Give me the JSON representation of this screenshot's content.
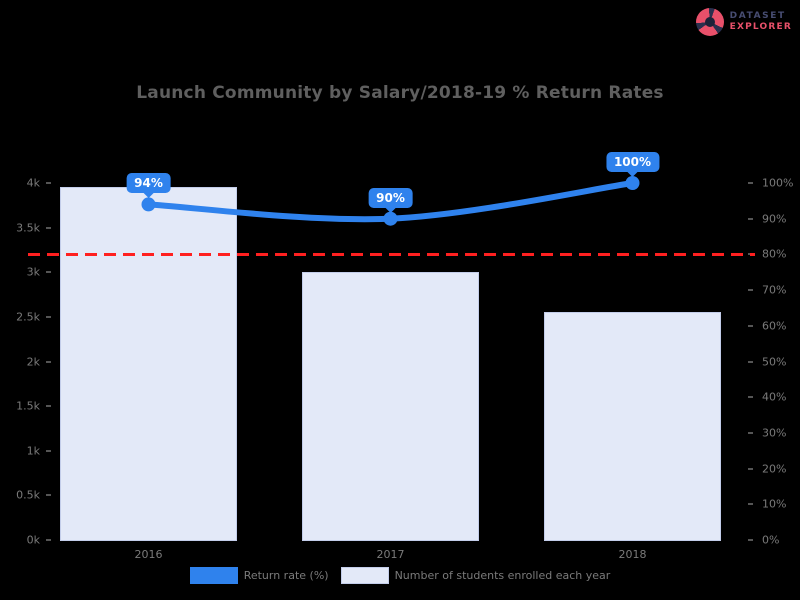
{
  "brand": {
    "line1": "DATASET",
    "line2": "EXPLORER",
    "color_primary": "#474d72",
    "color_accent": "#e8506a"
  },
  "chart_data": {
    "type": "bar",
    "title": "Launch Community by Salary/2018-19 % Return Rates",
    "background": "#000000",
    "grid": false,
    "legend_position": "bottom",
    "categories": [
      "2016",
      "2017",
      "2018"
    ],
    "series": [
      {
        "name": "Return rate (%)",
        "type": "line",
        "axis": "right",
        "values": [
          94,
          90,
          100
        ],
        "point_labels": [
          "94%",
          "90%",
          "100%"
        ],
        "color": "#2f82ed"
      },
      {
        "name": "Number of students enrolled each year",
        "type": "bar",
        "axis": "left",
        "values": [
          3950,
          3000,
          2550
        ],
        "color": "#e3e9f8",
        "border_color": "#c3cdea"
      }
    ],
    "left_axis": {
      "min": 0,
      "max": 4000,
      "tick_labels": [
        "4k",
        "3.5k",
        "3k",
        "2.5k",
        "2k",
        "1.5k",
        "1k",
        "0.5k",
        "0k"
      ]
    },
    "right_axis": {
      "min": 0,
      "max": 100,
      "tick_labels": [
        "100%",
        "90%",
        "80%",
        "70%",
        "60%",
        "50%",
        "40%",
        "30%",
        "20%",
        "10%",
        "0%"
      ]
    },
    "threshold_line": {
      "value": 80,
      "color": "#ff2020",
      "style": "dashed"
    }
  }
}
